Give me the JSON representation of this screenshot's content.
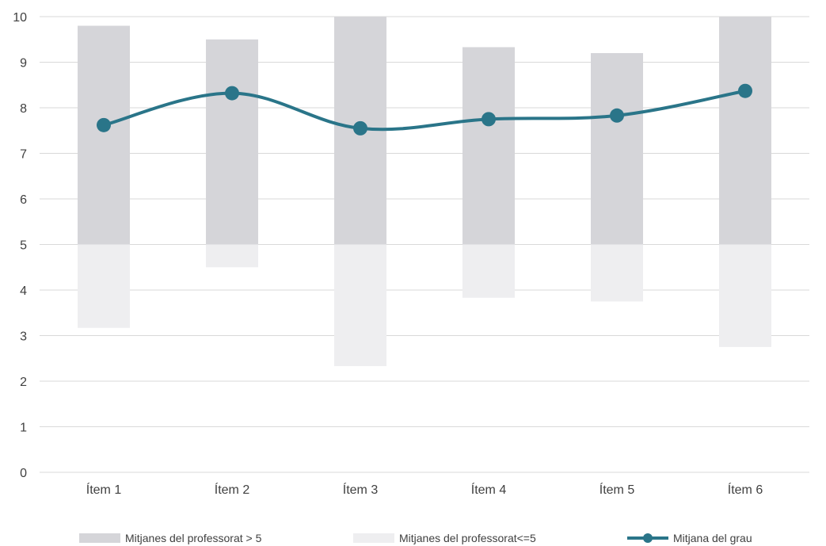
{
  "chart_data": {
    "type": "bar",
    "categories": [
      "Ítem 1",
      "Ítem 2",
      "Ítem 3",
      "Ítem 4",
      "Ítem 5",
      "Ítem 6"
    ],
    "series": [
      {
        "name": "Mitjanes del professorat > 5",
        "kind": "range-bar",
        "low": 5,
        "high": [
          9.8,
          9.5,
          10,
          9.33,
          9.2,
          10
        ],
        "color": "#d5d5d9"
      },
      {
        "name": "Mitjanes del professorat<=5",
        "kind": "range-bar",
        "low": [
          3.17,
          4.5,
          2.33,
          3.83,
          3.75,
          2.75
        ],
        "high": 5,
        "color": "#eeeef0"
      },
      {
        "name": "Mitjana del grau",
        "kind": "line",
        "values": [
          7.62,
          8.32,
          7.55,
          7.75,
          7.83,
          8.37
        ],
        "color": "#2a7589"
      }
    ],
    "y_ticks": [
      "0",
      "1",
      "2",
      "3",
      "4",
      "5",
      "6",
      "7",
      "8",
      "9",
      "10"
    ],
    "ylim": [
      0,
      10
    ],
    "title": "",
    "xlabel": "",
    "ylabel": "",
    "grid": true,
    "legend_position": "bottom"
  }
}
